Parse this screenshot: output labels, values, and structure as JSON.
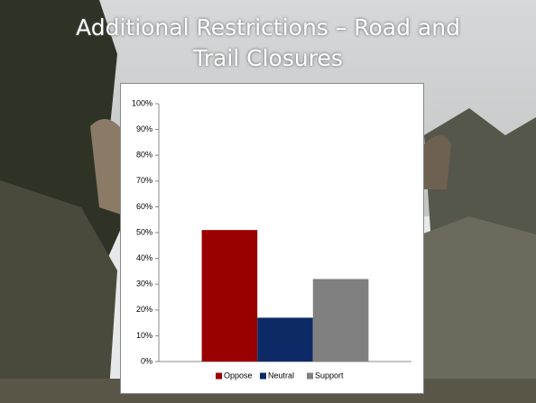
{
  "chart_data": {
    "type": "bar",
    "title": "Additional Restrictions – Road and Trail Closures",
    "categories": [
      null
    ],
    "series": [
      {
        "name": "Oppose",
        "color": "#990000",
        "values": [
          51
        ]
      },
      {
        "name": "Neutral",
        "color": "#0d2a66",
        "values": [
          17
        ]
      },
      {
        "name": "Support",
        "color": "#808080",
        "values": [
          32
        ]
      }
    ],
    "ylim": [
      0,
      100
    ],
    "yticks": [
      {
        "value": 0,
        "label": "0%"
      },
      {
        "value": 10,
        "label": "10%"
      },
      {
        "value": 20,
        "label": "20%"
      },
      {
        "value": 30,
        "label": "30%"
      },
      {
        "value": 40,
        "label": "40%"
      },
      {
        "value": 50,
        "label": "50%"
      },
      {
        "value": 60,
        "label": "60%"
      },
      {
        "value": 70,
        "label": "70%"
      },
      {
        "value": 80,
        "label": "80%"
      },
      {
        "value": 90,
        "label": "90%"
      },
      {
        "value": 100,
        "label": "100%"
      }
    ],
    "grid": false,
    "legend": "bottom"
  }
}
